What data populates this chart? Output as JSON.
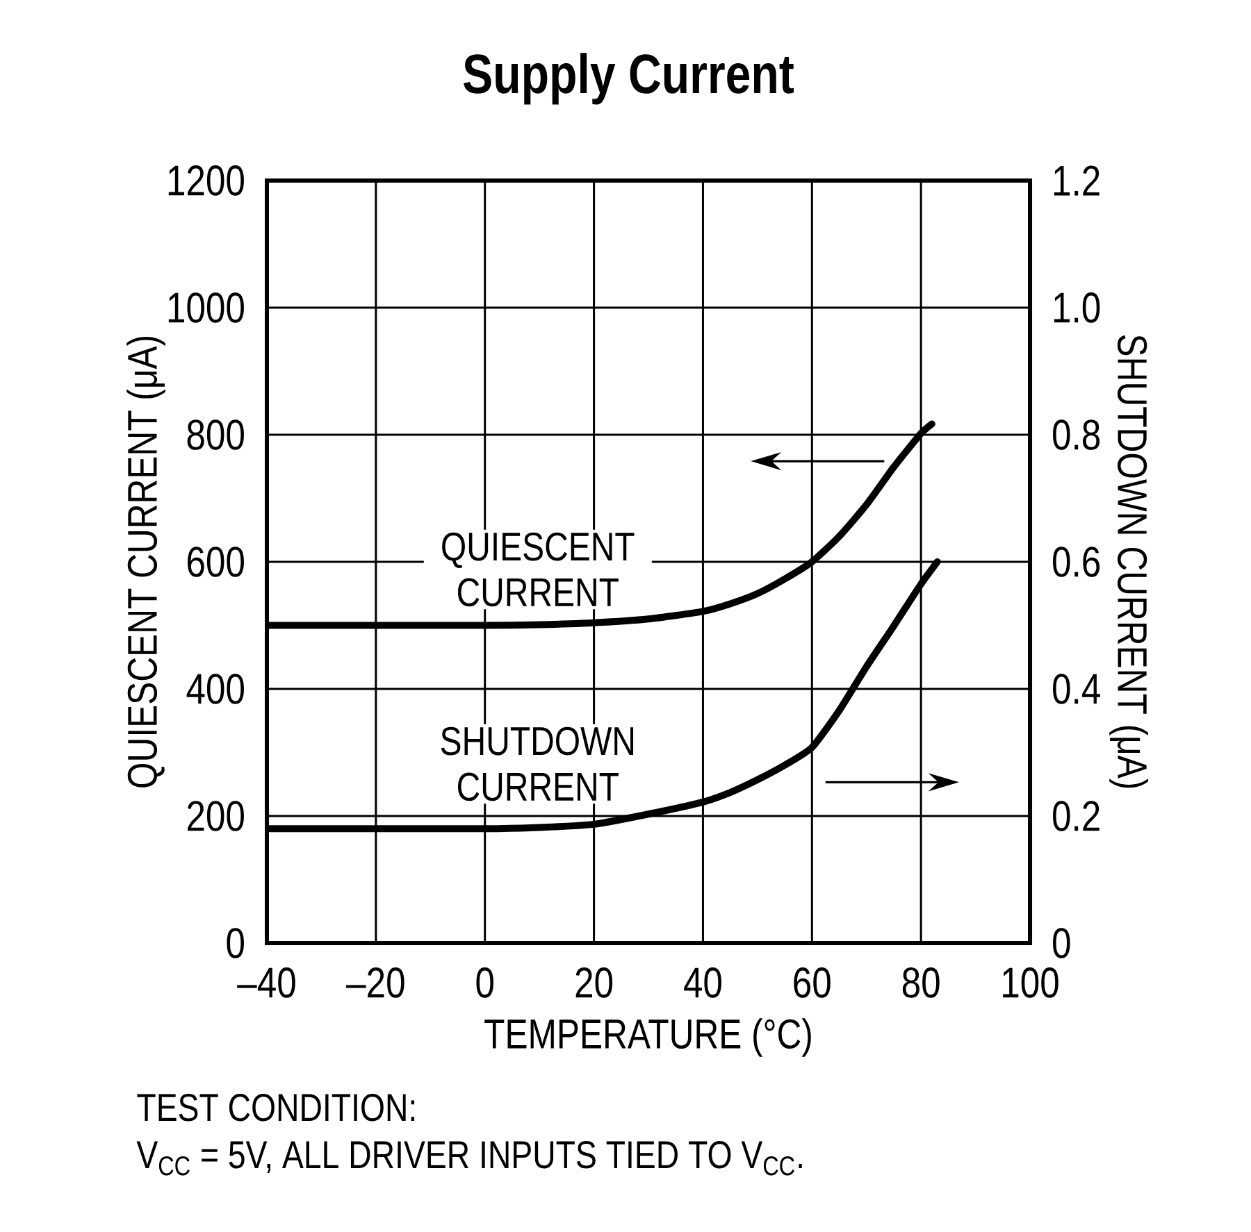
{
  "chart_data": {
    "type": "line",
    "title": "Supply Current",
    "xlabel": "TEMPERATURE (°C)",
    "ylabel": "QUIESCENT CURRENT (μA)",
    "y2label": "SHUTDOWN CURRENT (μA)",
    "xlim": [
      -40,
      100
    ],
    "xticks": [
      {
        "value": -40,
        "label": "–40"
      },
      {
        "value": -20,
        "label": "–20"
      },
      0,
      20,
      40,
      60,
      80,
      100
    ],
    "ylim": [
      0,
      1200
    ],
    "yticks": [
      0,
      200,
      400,
      600,
      800,
      1000,
      1200
    ],
    "y2lim": [
      0,
      1.2
    ],
    "y2ticks": [
      0,
      0.2,
      0.4,
      0.6,
      0.8,
      {
        "value": 1,
        "label": "1.0"
      },
      1.2
    ],
    "grid": true,
    "series": [
      {
        "name": "QUIESCENT CURRENT",
        "color": "#000000",
        "axis": "y",
        "x": [
          -40,
          -30,
          -20,
          -10,
          0,
          10,
          20,
          30,
          40,
          45,
          50,
          55,
          60,
          65,
          70,
          75,
          80,
          82
        ],
        "values": [
          500,
          500,
          500,
          500,
          500,
          501,
          504,
          510,
          522,
          534,
          550,
          573,
          600,
          640,
          690,
          749,
          802,
          817
        ]
      },
      {
        "name": "SHUTDOWN CURRENT",
        "color": "#000000",
        "axis": "y2",
        "x": [
          -40,
          -30,
          -20,
          -10,
          0,
          10,
          20,
          30,
          40,
          45,
          50,
          55,
          60,
          65,
          70,
          75,
          80,
          83
        ],
        "values": [
          0.18,
          0.18,
          0.18,
          0.18,
          0.18,
          0.182,
          0.187,
          0.203,
          0.222,
          0.237,
          0.257,
          0.28,
          0.308,
          0.366,
          0.435,
          0.499,
          0.565,
          0.6
        ]
      }
    ],
    "annotations": [
      "TEST CONDITION:",
      "V$_{CC}$ = 5V, ALL DRIVER INPUTS TIED TO V$_{CC}$."
    ]
  }
}
